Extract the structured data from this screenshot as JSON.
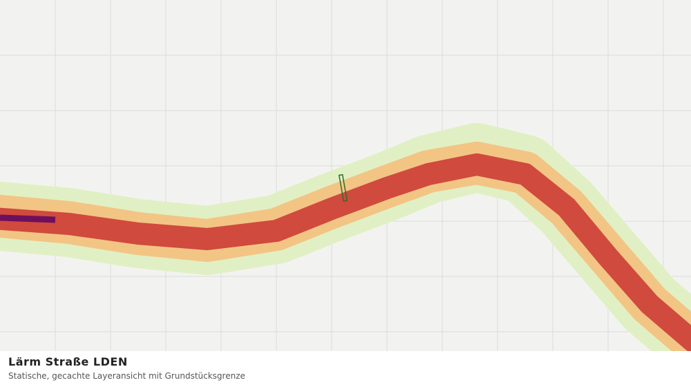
{
  "legend": {
    "title": "Lärm Straße LDEN",
    "subtitle": "Statische, gecachte Layeransicht mit Grundstücksgrenze"
  }
}
